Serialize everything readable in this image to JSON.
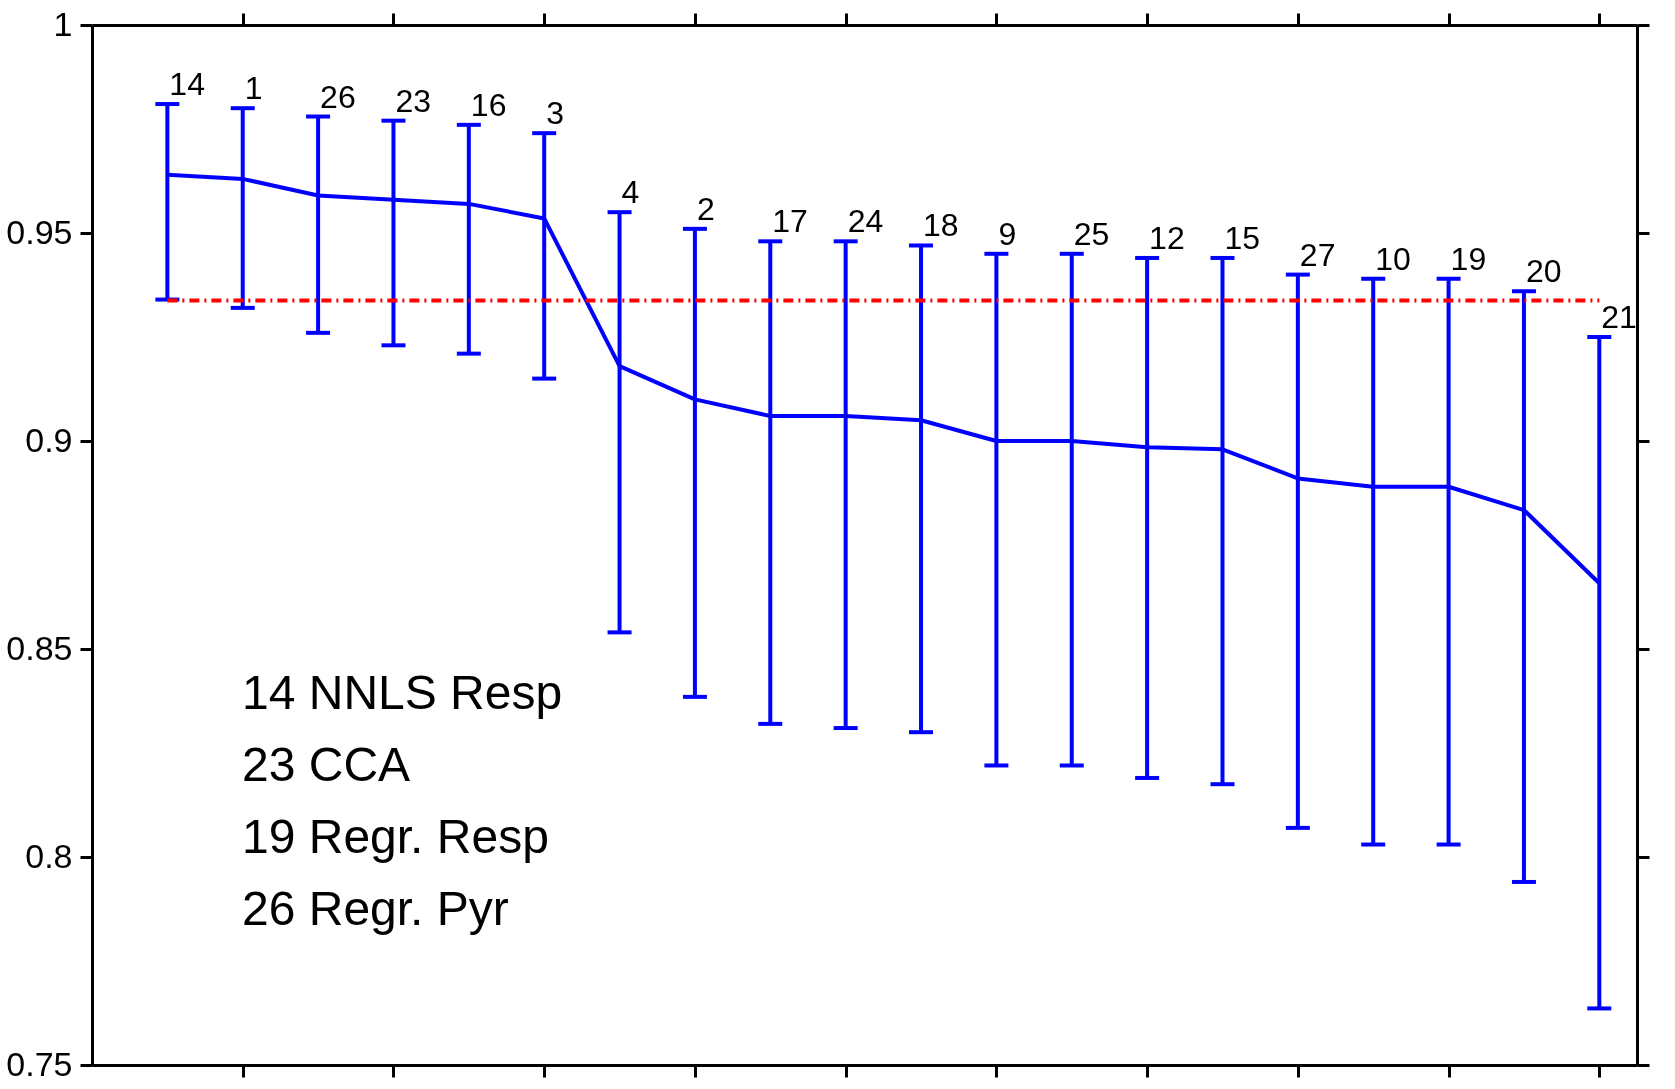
{
  "chart_data": {
    "type": "line",
    "categories": [
      "14",
      "1",
      "26",
      "23",
      "16",
      "3",
      "4",
      "2",
      "17",
      "24",
      "18",
      "9",
      "25",
      "12",
      "15",
      "27",
      "10",
      "19",
      "20",
      "21"
    ],
    "series": [
      {
        "color": "#0000ff",
        "values": [
          0.964,
          0.963,
          0.959,
          0.958,
          0.957,
          0.9535,
          0.918,
          0.91,
          0.906,
          0.906,
          0.905,
          0.9,
          0.9,
          0.8985,
          0.898,
          0.891,
          0.889,
          0.889,
          0.8834,
          0.8658
        ],
        "errors": [
          [
            0.934,
            0.981
          ],
          [
            0.932,
            0.98
          ],
          [
            0.926,
            0.978
          ],
          [
            0.923,
            0.977
          ],
          [
            0.921,
            0.976
          ],
          [
            0.915,
            0.974
          ],
          [
            0.854,
            0.955
          ],
          [
            0.8385,
            0.951
          ],
          [
            0.832,
            0.948
          ],
          [
            0.831,
            0.948
          ],
          [
            0.83,
            0.947
          ],
          [
            0.822,
            0.945
          ],
          [
            0.822,
            0.945
          ],
          [
            0.819,
            0.944
          ],
          [
            0.8175,
            0.944
          ],
          [
            0.807,
            0.94
          ],
          [
            0.803,
            0.939
          ],
          [
            0.803,
            0.939
          ],
          [
            0.794,
            0.936
          ],
          [
            0.7636,
            0.925
          ]
        ]
      }
    ],
    "ylim": [
      0.75,
      1
    ],
    "yticks": [
      0.75,
      0.8,
      0.85,
      0.9,
      0.95,
      1
    ],
    "tick_labels": "y",
    "grid": false,
    "marker": "none",
    "line_style": "solid",
    "ref_lines": [
      {
        "axis": "y",
        "value": 0.9338,
        "color": "#ff0000",
        "line_style": "dashdot"
      }
    ],
    "annotations": [
      "14 NNLS Resp",
      "23 CCA",
      "19 Regr. Resp",
      "26 Regr. Pyr"
    ]
  }
}
